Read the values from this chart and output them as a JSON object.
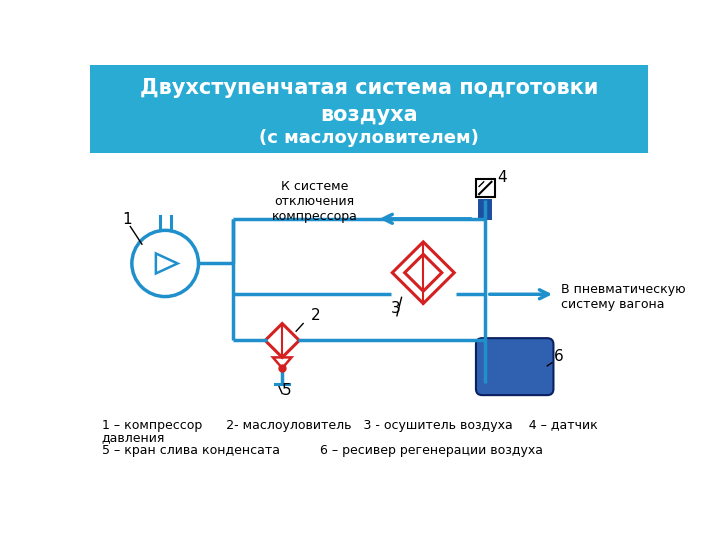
{
  "title_line1": "Двухступенчатая система подготовки",
  "title_line2": "воздуха",
  "title_line3": "(с маслоуловителем)",
  "title_bg": "#29ABD4",
  "title_text_color": "white",
  "line_color": "#2090CC",
  "red_color": "#D42020",
  "blue_fill": "#1E50A0",
  "recv_fill": "#3060B0",
  "legend_line1": "1 – компрессор      2- маслоуловитель   3 - осушитель воздуха    4 – датчик",
  "legend_line2": "давления",
  "legend_line3": "5 – кран слива конденсата          6 – ресивер регенерации воздуха",
  "label_system": "К системе\nотключения\nкомпрессора",
  "label_pneumo": "В пневматическую\nсистему вагона",
  "bg_color": "white"
}
